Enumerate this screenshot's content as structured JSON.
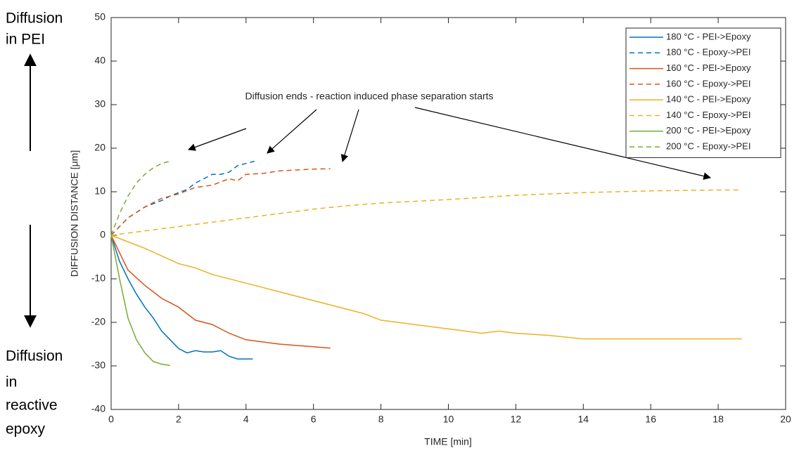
{
  "chart_data": {
    "type": "line",
    "xlabel": "TIME [min]",
    "ylabel": "DIFFUSION DISTANCE [μm]",
    "annotation": "Diffusion ends - reaction induced phase separation starts",
    "side_labels": {
      "top": [
        "Diffusion",
        "in PEI"
      ],
      "bottom": [
        "Diffusion",
        "in",
        "reactive",
        "epoxy"
      ]
    },
    "xlim": [
      0,
      20
    ],
    "xticks": [
      0,
      2,
      4,
      6,
      8,
      10,
      12,
      14,
      16,
      18,
      20
    ],
    "ylim": [
      -40,
      50
    ],
    "yticks": [
      -40,
      -30,
      -20,
      -10,
      0,
      10,
      20,
      30,
      40,
      50
    ],
    "grid": false,
    "legend": "top-right",
    "series": [
      {
        "name": "180 °C - PEI->Epoxy",
        "color": "#0072BD",
        "linestyle": "solid",
        "x": [
          0,
          0.25,
          0.5,
          0.75,
          1,
          1.25,
          1.5,
          1.75,
          2,
          2.25,
          2.5,
          2.75,
          3,
          3.25,
          3.5,
          3.75,
          4.2
        ],
        "values": [
          0,
          -6,
          -10,
          -13.5,
          -16.5,
          -19,
          -22,
          -24,
          -26,
          -27,
          -26.5,
          -26.8,
          -26.8,
          -26.5,
          -27.8,
          -28.4,
          -28.4
        ]
      },
      {
        "name": "180 °C - Epoxy->PEI",
        "color": "#0072BD",
        "linestyle": "dashed",
        "x": [
          0,
          0.5,
          1,
          1.5,
          1.75,
          2,
          2.25,
          2.5,
          2.75,
          3,
          3.25,
          3.5,
          3.75,
          4,
          4.25
        ],
        "values": [
          0,
          4,
          6.5,
          8,
          9,
          9.8,
          10.5,
          12,
          13,
          14,
          14,
          14.5,
          16,
          16.5,
          17
        ]
      },
      {
        "name": "160 °C - PEI->Epoxy",
        "color": "#D95319",
        "linestyle": "solid",
        "x": [
          0,
          0.5,
          1,
          1.5,
          1.75,
          2,
          2.25,
          2.5,
          3,
          3.5,
          4,
          4.5,
          5,
          5.5,
          6,
          6.5
        ],
        "values": [
          0,
          -8,
          -11.5,
          -14.5,
          -15.5,
          -16.5,
          -18,
          -19.5,
          -20.5,
          -22.5,
          -24,
          -24.5,
          -25,
          -25.3,
          -25.6,
          -25.9
        ]
      },
      {
        "name": "160 °C - Epoxy->PEI",
        "color": "#D95319",
        "linestyle": "dashed",
        "x": [
          0,
          0.5,
          1,
          1.5,
          2,
          2.5,
          3,
          3.5,
          3.75,
          4,
          4.5,
          5,
          5.5,
          6,
          6.5
        ],
        "values": [
          0,
          4,
          6.5,
          8.5,
          9.5,
          11,
          11.5,
          13,
          12.5,
          14,
          14.2,
          14.8,
          15,
          15.2,
          15.3
        ]
      },
      {
        "name": "140 °C - PEI->Epoxy",
        "color": "#EDB120",
        "linestyle": "solid",
        "x": [
          0,
          1,
          2,
          2.5,
          3,
          4,
          5,
          6,
          7,
          7.5,
          8,
          9,
          10,
          11,
          11.5,
          12,
          13,
          14,
          16,
          18.7
        ],
        "values": [
          0,
          -3,
          -6.5,
          -7.5,
          -9,
          -11,
          -13,
          -15,
          -17,
          -18,
          -19.5,
          -20.5,
          -21.5,
          -22.5,
          -22,
          -22.5,
          -23,
          -23.8,
          -23.8,
          -23.8
        ]
      },
      {
        "name": "140 °C - Epoxy->PEI",
        "color": "#EDB120",
        "linestyle": "dashed",
        "x": [
          0,
          1,
          2,
          3,
          4,
          5,
          6,
          7,
          8,
          9,
          10,
          11,
          12,
          13,
          14,
          15,
          16,
          17,
          18,
          18.7
        ],
        "values": [
          0,
          1,
          2,
          3,
          4,
          5,
          6,
          6.8,
          7.4,
          7.8,
          8.2,
          8.7,
          9.2,
          9.5,
          9.8,
          10,
          10.2,
          10.3,
          10.4,
          10.4
        ]
      },
      {
        "name": "200 °C - PEI->Epoxy",
        "color": "#77AC30",
        "linestyle": "solid",
        "x": [
          0,
          0.25,
          0.5,
          0.75,
          1,
          1.25,
          1.5,
          1.75
        ],
        "values": [
          0,
          -10,
          -19,
          -24,
          -27,
          -29,
          -29.6,
          -29.9
        ]
      },
      {
        "name": "200 °C - Epoxy->PEI",
        "color": "#77AC30",
        "linestyle": "dashed",
        "x": [
          0,
          0.25,
          0.5,
          0.75,
          1,
          1.25,
          1.5,
          1.75
        ],
        "values": [
          0,
          5,
          9,
          12,
          14,
          15.5,
          16.5,
          17
        ]
      }
    ]
  }
}
